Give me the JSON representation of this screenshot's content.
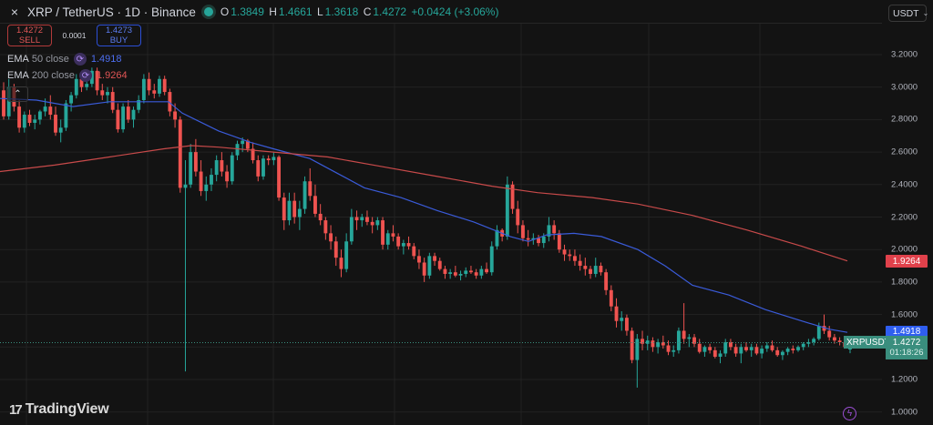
{
  "header": {
    "symbol_title": "XRP / TetherUS · 1D · Binance",
    "ohlc": {
      "o_label": "O",
      "o": "1.3849",
      "h_label": "H",
      "h": "1.4661",
      "l_label": "L",
      "l": "1.3618",
      "c_label": "C",
      "c": "1.4272",
      "change": "+0.0424 (+3.06%)"
    },
    "close_icon": "×",
    "currency": "USDT",
    "currency_chevron": "⌄"
  },
  "trade": {
    "sell_price": "1.4272",
    "sell_label": "SELL",
    "spread": "0.0001",
    "buy_price": "1.4273",
    "buy_label": "BUY"
  },
  "indicators": [
    {
      "name": "EMA",
      "params": "50 close",
      "value": "1.4918",
      "color": "#4d6ef0"
    },
    {
      "name": "EMA",
      "params": "200 close",
      "value": "1.9264",
      "color": "#e05555"
    }
  ],
  "collapse_icon": "⌃",
  "axis": {
    "ticks": [
      "3.2000",
      "3.0000",
      "2.8000",
      "2.6000",
      "2.4000",
      "2.2000",
      "2.0000",
      "1.8000",
      "1.6000",
      "1.2000",
      "1.0000"
    ],
    "tick_values": [
      3.2,
      3.0,
      2.8,
      2.6,
      2.4,
      2.2,
      2.0,
      1.8,
      1.6,
      1.2,
      1.0
    ]
  },
  "price_tags": {
    "ema200": "1.9264",
    "ema50": "1.4918",
    "current": "1.4272",
    "countdown": "01:18:26",
    "symbol": "XRPUSDT"
  },
  "colors": {
    "bg": "#131313",
    "grid": "#222222",
    "up": "#26a69a",
    "down": "#ef5350",
    "ema50": "#3a5bd9",
    "ema200": "#c84a4a",
    "ema200_tag": "#e0414b",
    "ema50_tag": "#2f5ef0",
    "current_tag": "#3a8e7e"
  },
  "logo": {
    "mark": "17",
    "text": "TradingView"
  },
  "bolt_icon": "ϟ",
  "chart_data": {
    "type": "candlestick",
    "title": "XRP / TetherUS · 1D · Binance",
    "ylabel": "USDT",
    "ylim": [
      0.97,
      3.3
    ],
    "y_ticks": [
      1.0,
      1.2,
      1.4,
      1.6,
      1.8,
      2.0,
      2.2,
      2.4,
      2.6,
      2.8,
      3.0,
      3.2
    ],
    "grid": true,
    "last": {
      "open": 1.3849,
      "high": 1.4661,
      "low": 1.3618,
      "close": 1.4272
    },
    "series": [
      {
        "name": "EMA 50 close",
        "last": 1.4918,
        "points": [
          [
            0,
            2.93
          ],
          [
            40,
            2.92
          ],
          [
            80,
            2.88
          ],
          [
            120,
            2.91
          ],
          [
            160,
            2.91
          ],
          [
            185,
            2.91
          ],
          [
            200,
            2.84
          ],
          [
            240,
            2.73
          ],
          [
            275,
            2.66
          ],
          [
            300,
            2.62
          ],
          [
            340,
            2.56
          ],
          [
            370,
            2.47
          ],
          [
            400,
            2.38
          ],
          [
            440,
            2.32
          ],
          [
            480,
            2.24
          ],
          [
            520,
            2.17
          ],
          [
            560,
            2.08
          ],
          [
            580,
            2.05
          ],
          [
            600,
            2.09
          ],
          [
            630,
            2.1
          ],
          [
            660,
            2.08
          ],
          [
            700,
            2.0
          ],
          [
            730,
            1.9
          ],
          [
            760,
            1.78
          ],
          [
            800,
            1.72
          ],
          [
            840,
            1.63
          ],
          [
            880,
            1.56
          ],
          [
            910,
            1.51
          ],
          [
            930,
            1.49
          ]
        ]
      },
      {
        "name": "EMA 200 close",
        "last": 1.9264,
        "points": [
          [
            0,
            2.48
          ],
          [
            60,
            2.52
          ],
          [
            120,
            2.57
          ],
          [
            180,
            2.62
          ],
          [
            210,
            2.64
          ],
          [
            240,
            2.63
          ],
          [
            300,
            2.6
          ],
          [
            360,
            2.57
          ],
          [
            420,
            2.51
          ],
          [
            480,
            2.45
          ],
          [
            540,
            2.39
          ],
          [
            590,
            2.35
          ],
          [
            650,
            2.32
          ],
          [
            700,
            2.28
          ],
          [
            760,
            2.21
          ],
          [
            820,
            2.12
          ],
          [
            880,
            2.02
          ],
          [
            930,
            1.93
          ]
        ]
      }
    ],
    "candles": [
      [
        2.98,
        3.03,
        2.8,
        2.82
      ],
      [
        2.82,
        3.05,
        2.8,
        3.0
      ],
      [
        3.0,
        3.02,
        2.85,
        2.88
      ],
      [
        2.88,
        2.92,
        2.72,
        2.75
      ],
      [
        2.75,
        2.85,
        2.72,
        2.83
      ],
      [
        2.83,
        2.86,
        2.76,
        2.78
      ],
      [
        2.78,
        2.83,
        2.74,
        2.8
      ],
      [
        2.8,
        2.86,
        2.77,
        2.85
      ],
      [
        2.85,
        2.93,
        2.82,
        2.88
      ],
      [
        2.88,
        2.95,
        2.8,
        2.83
      ],
      [
        2.83,
        2.88,
        2.7,
        2.72
      ],
      [
        2.72,
        2.8,
        2.66,
        2.75
      ],
      [
        2.75,
        2.92,
        2.73,
        2.9
      ],
      [
        2.9,
        2.97,
        2.85,
        2.95
      ],
      [
        2.95,
        3.08,
        2.93,
        3.05
      ],
      [
        3.05,
        3.1,
        2.97,
        3.0
      ],
      [
        3.0,
        3.05,
        2.98,
        3.02
      ],
      [
        3.02,
        3.12,
        3.0,
        3.1
      ],
      [
        3.1,
        3.12,
        2.95,
        2.98
      ],
      [
        2.98,
        3.02,
        2.92,
        2.95
      ],
      [
        2.95,
        3.0,
        2.9,
        2.97
      ],
      [
        2.97,
        3.0,
        2.84,
        2.86
      ],
      [
        2.86,
        2.9,
        2.72,
        2.74
      ],
      [
        2.74,
        2.9,
        2.72,
        2.88
      ],
      [
        2.88,
        2.92,
        2.78,
        2.8
      ],
      [
        2.8,
        2.88,
        2.75,
        2.86
      ],
      [
        2.86,
        2.95,
        2.84,
        2.92
      ],
      [
        2.92,
        3.08,
        2.9,
        3.05
      ],
      [
        3.05,
        3.09,
        2.95,
        2.98
      ],
      [
        2.98,
        3.02,
        2.93,
        2.96
      ],
      [
        2.96,
        3.07,
        2.94,
        3.05
      ],
      [
        3.05,
        3.07,
        2.95,
        2.97
      ],
      [
        2.97,
        2.99,
        2.82,
        2.85
      ],
      [
        2.85,
        2.9,
        2.75,
        2.8
      ],
      [
        2.8,
        2.82,
        2.35,
        2.38
      ],
      [
        2.38,
        2.55,
        1.25,
        2.4
      ],
      [
        2.4,
        2.65,
        2.38,
        2.6
      ],
      [
        2.6,
        2.68,
        2.45,
        2.48
      ],
      [
        2.48,
        2.55,
        2.33,
        2.36
      ],
      [
        2.36,
        2.45,
        2.3,
        2.4
      ],
      [
        2.4,
        2.5,
        2.36,
        2.46
      ],
      [
        2.46,
        2.58,
        2.42,
        2.55
      ],
      [
        2.55,
        2.6,
        2.45,
        2.48
      ],
      [
        2.48,
        2.52,
        2.38,
        2.42
      ],
      [
        2.42,
        2.6,
        2.4,
        2.58
      ],
      [
        2.58,
        2.67,
        2.55,
        2.65
      ],
      [
        2.65,
        2.69,
        2.6,
        2.67
      ],
      [
        2.67,
        2.68,
        2.6,
        2.62
      ],
      [
        2.62,
        2.66,
        2.53,
        2.55
      ],
      [
        2.55,
        2.58,
        2.42,
        2.45
      ],
      [
        2.45,
        2.58,
        2.43,
        2.56
      ],
      [
        2.56,
        2.58,
        2.52,
        2.55
      ],
      [
        2.55,
        2.6,
        2.52,
        2.57
      ],
      [
        2.57,
        2.58,
        2.3,
        2.32
      ],
      [
        2.32,
        2.35,
        2.12,
        2.18
      ],
      [
        2.18,
        2.35,
        2.15,
        2.3
      ],
      [
        2.3,
        2.35,
        2.16,
        2.2
      ],
      [
        2.2,
        2.3,
        2.12,
        2.25
      ],
      [
        2.25,
        2.45,
        2.22,
        2.42
      ],
      [
        2.42,
        2.5,
        2.3,
        2.33
      ],
      [
        2.33,
        2.4,
        2.2,
        2.22
      ],
      [
        2.22,
        2.28,
        2.15,
        2.18
      ],
      [
        2.18,
        2.2,
        2.06,
        2.1
      ],
      [
        2.1,
        2.15,
        2.0,
        2.05
      ],
      [
        2.05,
        2.08,
        1.9,
        1.95
      ],
      [
        1.95,
        2.0,
        1.83,
        1.88
      ],
      [
        1.88,
        2.1,
        1.86,
        2.05
      ],
      [
        2.05,
        2.25,
        2.03,
        2.2
      ],
      [
        2.2,
        2.24,
        2.12,
        2.18
      ],
      [
        2.18,
        2.22,
        2.14,
        2.2
      ],
      [
        2.2,
        2.24,
        2.15,
        2.17
      ],
      [
        2.17,
        2.2,
        2.1,
        2.15
      ],
      [
        2.15,
        2.2,
        2.12,
        2.18
      ],
      [
        2.18,
        2.2,
        2.0,
        2.03
      ],
      [
        2.03,
        2.12,
        2.0,
        2.1
      ],
      [
        2.1,
        2.15,
        2.05,
        2.08
      ],
      [
        2.08,
        2.1,
        2.0,
        2.02
      ],
      [
        2.02,
        2.06,
        1.97,
        2.04
      ],
      [
        2.04,
        2.08,
        2.0,
        2.02
      ],
      [
        2.02,
        2.04,
        1.94,
        1.96
      ],
      [
        1.96,
        2.0,
        1.88,
        1.92
      ],
      [
        1.92,
        1.95,
        1.8,
        1.84
      ],
      [
        1.84,
        1.98,
        1.82,
        1.96
      ],
      [
        1.96,
        1.98,
        1.9,
        1.93
      ],
      [
        1.93,
        1.95,
        1.87,
        1.88
      ],
      [
        1.88,
        1.9,
        1.82,
        1.85
      ],
      [
        1.85,
        1.88,
        1.82,
        1.86
      ],
      [
        1.86,
        1.9,
        1.83,
        1.84
      ],
      [
        1.84,
        1.87,
        1.81,
        1.85
      ],
      [
        1.85,
        1.89,
        1.83,
        1.87
      ],
      [
        1.87,
        1.9,
        1.85,
        1.86
      ],
      [
        1.86,
        1.88,
        1.82,
        1.84
      ],
      [
        1.84,
        1.9,
        1.82,
        1.88
      ],
      [
        1.88,
        1.92,
        1.85,
        1.86
      ],
      [
        1.86,
        2.05,
        1.84,
        2.02
      ],
      [
        2.02,
        2.15,
        2.0,
        2.12
      ],
      [
        2.12,
        2.13,
        2.05,
        2.08
      ],
      [
        2.08,
        2.45,
        2.06,
        2.4
      ],
      [
        2.4,
        2.42,
        2.22,
        2.25
      ],
      [
        2.25,
        2.3,
        2.1,
        2.15
      ],
      [
        2.15,
        2.18,
        2.05,
        2.07
      ],
      [
        2.07,
        2.12,
        2.02,
        2.06
      ],
      [
        2.06,
        2.1,
        2.03,
        2.07
      ],
      [
        2.07,
        2.09,
        2.02,
        2.04
      ],
      [
        2.04,
        2.1,
        2.01,
        2.08
      ],
      [
        2.08,
        2.2,
        2.05,
        2.15
      ],
      [
        2.15,
        2.18,
        2.06,
        2.1
      ],
      [
        2.1,
        2.12,
        1.98,
        2.0
      ],
      [
        2.0,
        2.03,
        1.93,
        1.97
      ],
      [
        1.97,
        2.0,
        1.93,
        1.96
      ],
      [
        1.96,
        2.0,
        1.9,
        1.93
      ],
      [
        1.93,
        1.97,
        1.87,
        1.9
      ],
      [
        1.9,
        1.95,
        1.84,
        1.88
      ],
      [
        1.88,
        1.9,
        1.82,
        1.85
      ],
      [
        1.85,
        1.95,
        1.83,
        1.9
      ],
      [
        1.9,
        1.92,
        1.84,
        1.86
      ],
      [
        1.86,
        1.88,
        1.72,
        1.75
      ],
      [
        1.75,
        1.78,
        1.62,
        1.65
      ],
      [
        1.65,
        1.7,
        1.52,
        1.56
      ],
      [
        1.56,
        1.62,
        1.5,
        1.58
      ],
      [
        1.58,
        1.6,
        1.47,
        1.5
      ],
      [
        1.5,
        1.52,
        1.3,
        1.32
      ],
      [
        1.32,
        1.48,
        1.15,
        1.45
      ],
      [
        1.45,
        1.5,
        1.38,
        1.42
      ],
      [
        1.42,
        1.47,
        1.38,
        1.44
      ],
      [
        1.44,
        1.46,
        1.37,
        1.4
      ],
      [
        1.4,
        1.45,
        1.36,
        1.43
      ],
      [
        1.43,
        1.47,
        1.39,
        1.41
      ],
      [
        1.41,
        1.44,
        1.35,
        1.37
      ],
      [
        1.37,
        1.41,
        1.34,
        1.38
      ],
      [
        1.38,
        1.52,
        1.36,
        1.5
      ],
      [
        1.5,
        1.67,
        1.42,
        1.45
      ],
      [
        1.45,
        1.48,
        1.4,
        1.46
      ],
      [
        1.46,
        1.48,
        1.4,
        1.42
      ],
      [
        1.42,
        1.45,
        1.36,
        1.37
      ],
      [
        1.37,
        1.41,
        1.34,
        1.4
      ],
      [
        1.4,
        1.42,
        1.36,
        1.38
      ],
      [
        1.38,
        1.4,
        1.33,
        1.34
      ],
      [
        1.34,
        1.38,
        1.3,
        1.36
      ],
      [
        1.36,
        1.45,
        1.34,
        1.43
      ],
      [
        1.43,
        1.45,
        1.38,
        1.4
      ],
      [
        1.4,
        1.42,
        1.34,
        1.36
      ],
      [
        1.36,
        1.42,
        1.3,
        1.4
      ],
      [
        1.4,
        1.43,
        1.37,
        1.38
      ],
      [
        1.38,
        1.42,
        1.34,
        1.4
      ],
      [
        1.4,
        1.42,
        1.35,
        1.36
      ],
      [
        1.36,
        1.41,
        1.33,
        1.39
      ],
      [
        1.39,
        1.43,
        1.37,
        1.41
      ],
      [
        1.41,
        1.44,
        1.37,
        1.38
      ],
      [
        1.38,
        1.4,
        1.34,
        1.35
      ],
      [
        1.35,
        1.38,
        1.32,
        1.37
      ],
      [
        1.37,
        1.4,
        1.35,
        1.39
      ],
      [
        1.39,
        1.41,
        1.36,
        1.38
      ],
      [
        1.38,
        1.41,
        1.37,
        1.4
      ],
      [
        1.4,
        1.43,
        1.38,
        1.42
      ],
      [
        1.42,
        1.45,
        1.4,
        1.43
      ],
      [
        1.43,
        1.46,
        1.41,
        1.45
      ],
      [
        1.45,
        1.55,
        1.44,
        1.53
      ],
      [
        1.53,
        1.6,
        1.48,
        1.5
      ],
      [
        1.5,
        1.53,
        1.44,
        1.46
      ],
      [
        1.46,
        1.48,
        1.42,
        1.44
      ],
      [
        1.44,
        1.46,
        1.41,
        1.43
      ],
      [
        1.43,
        1.45,
        1.39,
        1.4
      ],
      [
        1.3849,
        1.4661,
        1.3618,
        1.4272
      ]
    ]
  }
}
